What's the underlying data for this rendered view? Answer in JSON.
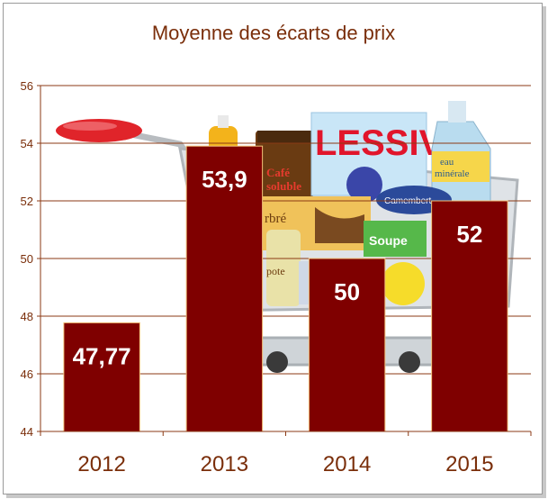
{
  "chart_data": {
    "type": "bar",
    "title": "Moyenne des écarts de prix",
    "categories": [
      "2012",
      "2013",
      "2014",
      "2015"
    ],
    "values": [
      47.77,
      53.9,
      50,
      52
    ],
    "data_labels": [
      "47,77",
      "53,9",
      "50",
      "52"
    ],
    "ylim": [
      44,
      56
    ],
    "yticks": [
      "44",
      "46",
      "48",
      "50",
      "52",
      "54",
      "56"
    ],
    "xlabel": "",
    "ylabel": "",
    "grid": true,
    "legend": "none",
    "bar_color": "#7f0000",
    "grid_color": "#8b3a14",
    "text_color": "#7a2e0a",
    "background_image": {
      "description": "shopping-cart-with-groceries",
      "visible_text": [
        "LESSIVE",
        "Café soluble",
        "eau minérale",
        "Soupe",
        "Camembert"
      ]
    }
  }
}
